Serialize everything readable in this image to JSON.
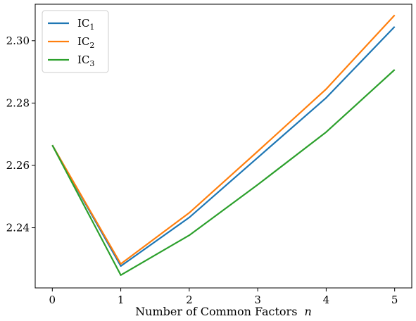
{
  "chart_data": {
    "type": "line",
    "x": [
      0,
      1,
      2,
      3,
      4,
      5
    ],
    "xlabel_text": "Number of Common Factors",
    "xlabel_var": "n",
    "ylabel": "",
    "xlim": [
      -0.25,
      5.25
    ],
    "ylim": [
      2.2207,
      2.3117
    ],
    "xticks": [
      0,
      1,
      2,
      3,
      4,
      5
    ],
    "xtick_labels": [
      "0",
      "1",
      "2",
      "3",
      "4",
      "5"
    ],
    "yticks": [
      2.24,
      2.26,
      2.28,
      2.3
    ],
    "ytick_labels": [
      "2.24",
      "2.26",
      "2.28",
      "2.30"
    ],
    "grid": false,
    "legend_placement": "top-left",
    "series": [
      {
        "name": "IC",
        "subscript": "1",
        "color": "#1f77b4",
        "values": [
          2.2665,
          2.2277,
          2.2433,
          2.2625,
          2.2817,
          2.3045
        ]
      },
      {
        "name": "IC",
        "subscript": "2",
        "color": "#ff7f0e",
        "values": [
          2.2665,
          2.2284,
          2.2448,
          2.2645,
          2.2845,
          2.3082
        ]
      },
      {
        "name": "IC",
        "subscript": "3",
        "color": "#2ca02c",
        "values": [
          2.2665,
          2.2248,
          2.2376,
          2.2538,
          2.2707,
          2.2907
        ]
      }
    ]
  }
}
